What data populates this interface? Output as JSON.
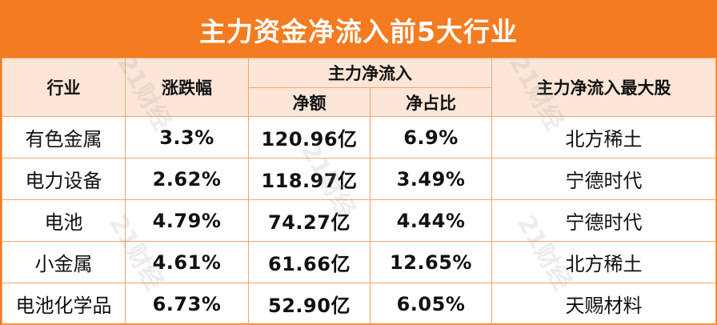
{
  "title": "主力资金净流入前5大行业",
  "headers": {
    "industry": "行业",
    "change": "涨跌幅",
    "main_inflow": "主力净流入",
    "net_amount": "净额",
    "net_ratio": "净占比",
    "top_stock": "主力净流入最大股"
  },
  "rows": [
    {
      "industry": "有色金属",
      "change": "3.3%",
      "net_amount": "120.96亿",
      "net_ratio": "6.9%",
      "top_stock": "北方稀土"
    },
    {
      "industry": "电力设备",
      "change": "2.62%",
      "net_amount": "118.97亿",
      "net_ratio": "3.49%",
      "top_stock": "宁德时代"
    },
    {
      "industry": "电池",
      "change": "4.79%",
      "net_amount": "74.27亿",
      "net_ratio": "4.44%",
      "top_stock": "宁德时代"
    },
    {
      "industry": "小金属",
      "change": "4.61%",
      "net_amount": "61.66亿",
      "net_ratio": "12.65%",
      "top_stock": "北方稀土"
    },
    {
      "industry": "电池化学品",
      "change": "6.73%",
      "net_amount": "52.90亿",
      "net_ratio": "6.05%",
      "top_stock": "天赐材料"
    }
  ],
  "watermark": "21财经",
  "colors": {
    "accent": "#f47b20",
    "header_bg": "#fde6d8",
    "border": "#f5a46a"
  }
}
